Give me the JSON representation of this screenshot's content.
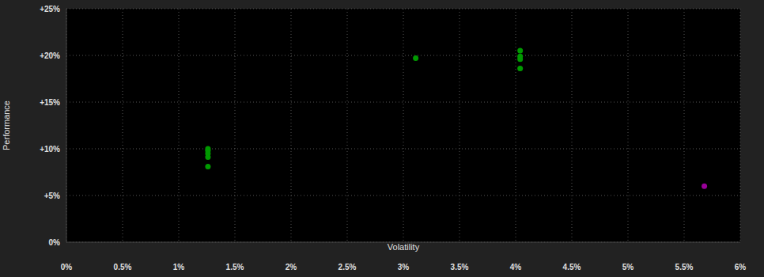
{
  "chart_data": {
    "type": "scatter",
    "x_label": "Volatility",
    "y_label": "Performance",
    "xlim": [
      0,
      6
    ],
    "ylim": [
      0,
      25
    ],
    "xticks": [
      {
        "value": 0,
        "label": "0%"
      },
      {
        "value": 0.5,
        "label": "0.5%"
      },
      {
        "value": 1,
        "label": "1%"
      },
      {
        "value": 1.5,
        "label": "1.5%"
      },
      {
        "value": 2,
        "label": "2%"
      },
      {
        "value": 2.5,
        "label": "2.5%"
      },
      {
        "value": 3,
        "label": "3%"
      },
      {
        "value": 3.5,
        "label": "3.5%"
      },
      {
        "value": 4,
        "label": "4%"
      },
      {
        "value": 4.5,
        "label": "4.5%"
      },
      {
        "value": 5,
        "label": "5%"
      },
      {
        "value": 5.5,
        "label": "5.5%"
      },
      {
        "value": 6,
        "label": "6%"
      }
    ],
    "yticks": [
      {
        "value": 0,
        "label": "0%"
      },
      {
        "value": 5,
        "label": "+5%"
      },
      {
        "value": 10,
        "label": "+10%"
      },
      {
        "value": 15,
        "label": "+15%"
      },
      {
        "value": 20,
        "label": "+20%"
      },
      {
        "value": 25,
        "label": "+25%"
      }
    ],
    "grid": true,
    "series": [
      {
        "color": "#009900",
        "x": [
          1.26,
          1.26,
          1.26,
          1.26,
          1.26,
          3.11,
          4.04,
          4.04,
          4.04,
          4.04
        ],
        "values": [
          10.0,
          9.8,
          9.5,
          9.1,
          8.1,
          19.7,
          20.5,
          19.9,
          19.6,
          18.6
        ]
      },
      {
        "color": "#990099",
        "x": [
          5.68
        ],
        "values": [
          6.0
        ]
      }
    ]
  }
}
